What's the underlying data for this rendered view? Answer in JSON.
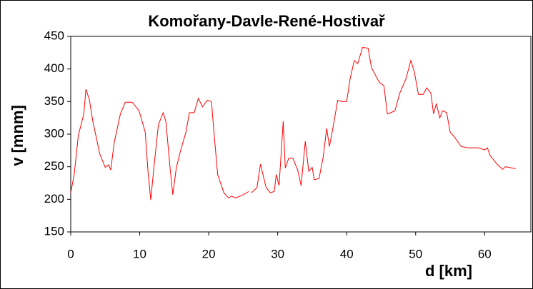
{
  "chart_data": {
    "type": "line",
    "title": "Komořany-Davle-René-Hostivař",
    "x_label": "d [km]",
    "y_label": "v [mnm]",
    "xlim": [
      0,
      66.7
    ],
    "xticks": [
      0,
      10,
      20,
      30,
      40,
      50,
      60
    ],
    "ylim": [
      150,
      450
    ],
    "yticks": [
      150,
      200,
      250,
      300,
      350,
      400,
      450
    ],
    "grid": false,
    "series": [
      {
        "color": "#ff0000",
        "x": [
          0,
          0.5,
          1.1,
          1.9,
          2.2,
          2.7,
          3.2,
          4.2,
          5.0,
          5.5,
          5.8,
          6.3,
          7.2,
          7.9,
          8.9,
          9.9,
          10.8,
          11.2,
          11.6,
          12.0,
          12.7,
          13.4,
          13.8,
          14.4,
          14.8,
          15.3,
          15.9,
          16.7,
          17.2,
          17.9,
          18.5,
          19.1,
          19.8,
          20.4,
          20.8,
          21.3,
          22.2,
          22.9,
          23.3,
          23.9,
          25.0,
          25.8,
          26.0,
          26.2,
          27.0,
          27.5,
          28.3,
          28.9,
          29.5,
          29.8,
          30.2,
          30.5,
          30.8,
          31.1,
          31.6,
          32.2,
          32.9,
          33.4,
          34.0,
          34.5,
          35.0,
          35.3,
          36.0,
          36.6,
          37.1,
          37.5,
          38.0,
          38.7,
          39.3,
          40.0,
          40.5,
          41.1,
          41.6,
          42.3,
          43.1,
          43.6,
          44.7,
          45.4,
          45.9,
          46.4,
          47.0,
          47.7,
          48.6,
          49.3,
          49.8,
          50.4,
          51.1,
          51.6,
          52.2,
          52.6,
          53.0,
          53.5,
          53.9,
          54.5,
          55.0,
          55.6,
          56.6,
          57.6,
          59.1,
          60.0,
          60.4,
          60.8,
          61.8,
          62.6,
          63.0,
          64.5
        ],
        "values": [
          210,
          238,
          298,
          331,
          369,
          353,
          320,
          270,
          249,
          253,
          245,
          287,
          331,
          349,
          349,
          336,
          303,
          243,
          199,
          243,
          314,
          333,
          319,
          248,
          207,
          248,
          274,
          303,
          333,
          333,
          355,
          342,
          352,
          350,
          298,
          238,
          210,
          202,
          205,
          202,
          207,
          212,
          null,
          210,
          218,
          254,
          219,
          210,
          212,
          238,
          221,
          270,
          320,
          248,
          263,
          263,
          245,
          221,
          289,
          243,
          249,
          230,
          232,
          265,
          309,
          281,
          309,
          352,
          350,
          350,
          385,
          413,
          408,
          433,
          432,
          402,
          380,
          374,
          331,
          333,
          336,
          363,
          385,
          413,
          396,
          361,
          361,
          371,
          363,
          331,
          347,
          325,
          336,
          333,
          303,
          296,
          281,
          279,
          279,
          276,
          279,
          267,
          254,
          246,
          250,
          247
        ]
      }
    ]
  }
}
